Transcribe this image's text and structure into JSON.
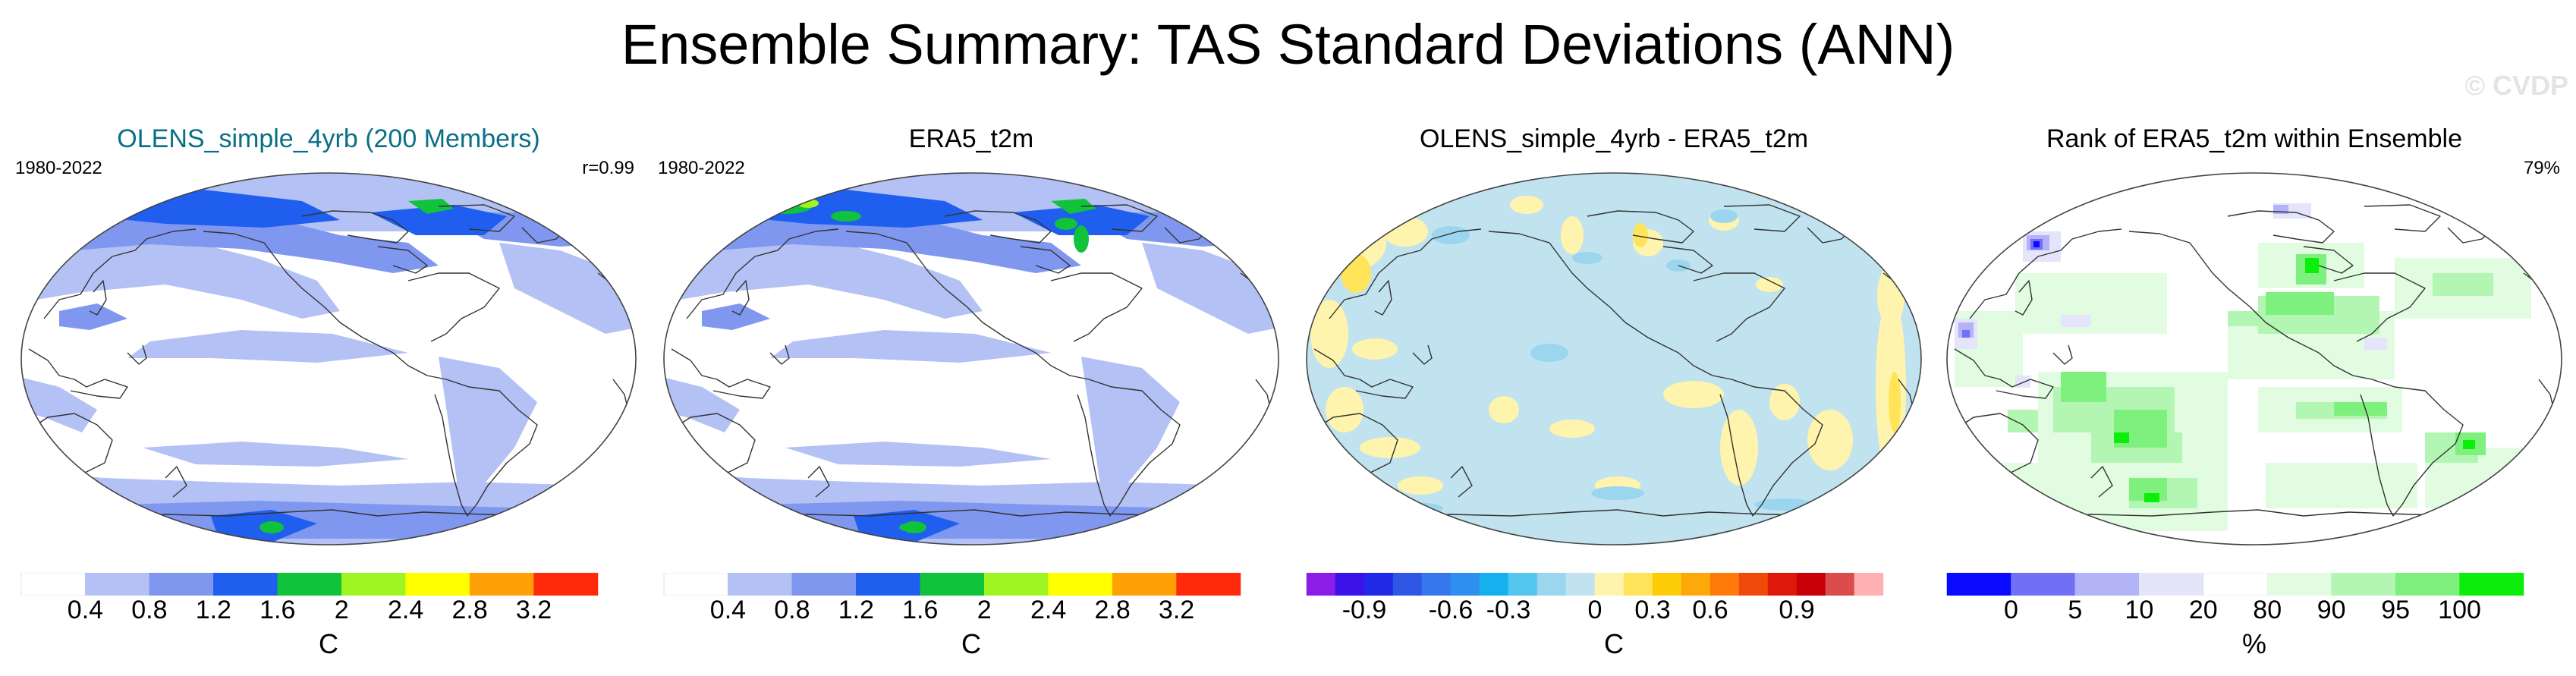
{
  "title": "Ensemble Summary: TAS Standard Deviations (ANN)",
  "watermark": "© CVDP",
  "panels": [
    {
      "title": "OLENS_simple_4yrb (200 Members)",
      "title_color": "#0a6f86",
      "left_label": "1980-2022",
      "right_label": "r=0.99",
      "map_style": "sd",
      "intense": false,
      "colorbar": {
        "colors": [
          "#ffffff",
          "#b3c1f5",
          "#7f97ef",
          "#1f5eef",
          "#10c33a",
          "#9ef522",
          "#ffff00",
          "#ffa006",
          "#ff2a0a"
        ],
        "ticks": [
          "0.4",
          "0.8",
          "1.2",
          "1.6",
          "2",
          "2.4",
          "2.8",
          "3.2"
        ],
        "units": "C"
      }
    },
    {
      "title": "ERA5_t2m",
      "title_color": "#000000",
      "left_label": "1980-2022",
      "right_label": "",
      "map_style": "sd",
      "intense": true,
      "colorbar": {
        "colors": [
          "#ffffff",
          "#b3c1f5",
          "#7f97ef",
          "#1f5eef",
          "#10c33a",
          "#9ef522",
          "#ffff00",
          "#ffa006",
          "#ff2a0a"
        ],
        "ticks": [
          "0.4",
          "0.8",
          "1.2",
          "1.6",
          "2",
          "2.4",
          "2.8",
          "3.2"
        ],
        "units": "C"
      }
    },
    {
      "title": "OLENS_simple_4yrb - ERA5_t2m",
      "title_color": "#000000",
      "left_label": "",
      "right_label": "",
      "map_style": "diff",
      "intense": false,
      "colorbar": {
        "colors": [
          "#8a1ee6",
          "#3b13e8",
          "#2129e6",
          "#2f57e6",
          "#3777ee",
          "#2f8fee",
          "#17b0ee",
          "#52c6ee",
          "#9bd5ee",
          "#c1e3ef",
          "#fff4ad",
          "#ffe45a",
          "#ffcc0a",
          "#ffa80a",
          "#ff7a0a",
          "#ef4a0a",
          "#dd1a0a",
          "#c8000a",
          "#db4d4d",
          "#ffb0b0"
        ],
        "ticks": [
          "-0.9",
          "-0.6",
          "-0.3",
          "0",
          "0.3",
          "0.6",
          "0.9"
        ],
        "units": "C"
      }
    },
    {
      "title": "Rank of ERA5_t2m within Ensemble",
      "title_color": "#000000",
      "left_label": "",
      "right_label": "79%",
      "map_style": "rank",
      "intense": false,
      "colorbar": {
        "colors": [
          "#0a0aff",
          "#7070f5",
          "#b3b3f8",
          "#e4e4fb",
          "#ffffff",
          "#e2fce2",
          "#b3f6b3",
          "#7ef07e",
          "#0aee0a"
        ],
        "ticks": [
          "0",
          "5",
          "10",
          "20",
          "80",
          "90",
          "95",
          "100"
        ],
        "units": "%"
      }
    }
  ]
}
